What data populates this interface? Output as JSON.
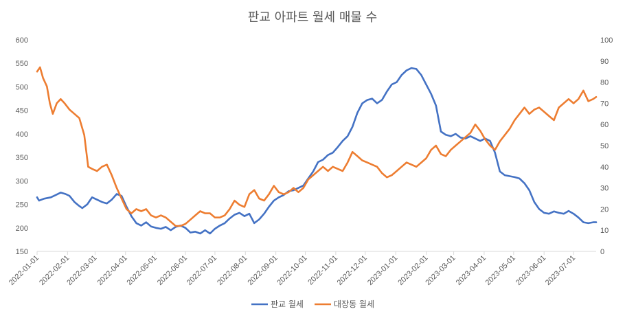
{
  "chart_data": {
    "type": "line",
    "title": "판교 아파트 월세 매물 수",
    "x_tick_labels": [
      "2022-01-01",
      "2022-02-01",
      "2022-03-01",
      "2022-04-01",
      "2022-05-01",
      "2022-06-01",
      "2022-07-01",
      "2022-08-01",
      "2022-09-01",
      "2022-10-01",
      "2022-11-01",
      "2022-12-01",
      "2023-01-01",
      "2023-02-01",
      "2023-03-01",
      "2023-04-01",
      "2023-05-01",
      "2023-06-01",
      "2023-07-01"
    ],
    "x_range": [
      "2022-01-01",
      "2023-07-24"
    ],
    "y_left": {
      "min": 150,
      "max": 600,
      "step": 50,
      "ticks": [
        "150",
        "200",
        "250",
        "300",
        "350",
        "400",
        "450",
        "500",
        "550",
        "600"
      ]
    },
    "y_right": {
      "min": 0,
      "max": 100,
      "step": 10,
      "ticks": [
        "0",
        "10",
        "20",
        "30",
        "40",
        "50",
        "60",
        "70",
        "80",
        "90",
        "100"
      ]
    },
    "grid": false,
    "legend_position": "bottom",
    "series": [
      {
        "name": "판교 월세",
        "axis": "left",
        "color": "#4472C4",
        "points": [
          [
            "2022-01-01",
            265
          ],
          [
            "2022-01-03",
            258
          ],
          [
            "2022-01-08",
            262
          ],
          [
            "2022-01-15",
            265
          ],
          [
            "2022-01-20",
            270
          ],
          [
            "2022-01-25",
            275
          ],
          [
            "2022-01-30",
            272
          ],
          [
            "2022-02-03",
            268
          ],
          [
            "2022-02-08",
            255
          ],
          [
            "2022-02-12",
            248
          ],
          [
            "2022-02-16",
            242
          ],
          [
            "2022-02-21",
            250
          ],
          [
            "2022-02-26",
            265
          ],
          [
            "2022-03-03",
            260
          ],
          [
            "2022-03-08",
            255
          ],
          [
            "2022-03-13",
            252
          ],
          [
            "2022-03-18",
            260
          ],
          [
            "2022-03-23",
            272
          ],
          [
            "2022-03-28",
            268
          ],
          [
            "2022-04-02",
            245
          ],
          [
            "2022-04-07",
            225
          ],
          [
            "2022-04-12",
            210
          ],
          [
            "2022-04-17",
            205
          ],
          [
            "2022-04-22",
            212
          ],
          [
            "2022-04-27",
            203
          ],
          [
            "2022-05-02",
            200
          ],
          [
            "2022-05-07",
            198
          ],
          [
            "2022-05-12",
            202
          ],
          [
            "2022-05-17",
            195
          ],
          [
            "2022-05-22",
            202
          ],
          [
            "2022-05-27",
            205
          ],
          [
            "2022-06-01",
            200
          ],
          [
            "2022-06-06",
            190
          ],
          [
            "2022-06-11",
            192
          ],
          [
            "2022-06-16",
            188
          ],
          [
            "2022-06-21",
            195
          ],
          [
            "2022-06-26",
            188
          ],
          [
            "2022-07-01",
            198
          ],
          [
            "2022-07-06",
            205
          ],
          [
            "2022-07-11",
            210
          ],
          [
            "2022-07-16",
            220
          ],
          [
            "2022-07-21",
            228
          ],
          [
            "2022-07-26",
            232
          ],
          [
            "2022-07-31",
            225
          ],
          [
            "2022-08-05",
            230
          ],
          [
            "2022-08-10",
            210
          ],
          [
            "2022-08-15",
            218
          ],
          [
            "2022-08-20",
            230
          ],
          [
            "2022-08-25",
            245
          ],
          [
            "2022-08-30",
            258
          ],
          [
            "2022-09-04",
            265
          ],
          [
            "2022-09-09",
            270
          ],
          [
            "2022-09-14",
            278
          ],
          [
            "2022-09-19",
            280
          ],
          [
            "2022-09-24",
            285
          ],
          [
            "2022-09-29",
            290
          ],
          [
            "2022-10-04",
            305
          ],
          [
            "2022-10-09",
            320
          ],
          [
            "2022-10-14",
            340
          ],
          [
            "2022-10-19",
            345
          ],
          [
            "2022-10-24",
            355
          ],
          [
            "2022-10-29",
            360
          ],
          [
            "2022-11-03",
            372
          ],
          [
            "2022-11-08",
            385
          ],
          [
            "2022-11-13",
            395
          ],
          [
            "2022-11-18",
            415
          ],
          [
            "2022-11-23",
            445
          ],
          [
            "2022-11-28",
            465
          ],
          [
            "2022-12-03",
            472
          ],
          [
            "2022-12-08",
            475
          ],
          [
            "2022-12-13",
            465
          ],
          [
            "2022-12-18",
            472
          ],
          [
            "2022-12-23",
            490
          ],
          [
            "2022-12-28",
            505
          ],
          [
            "2023-01-02",
            510
          ],
          [
            "2023-01-07",
            525
          ],
          [
            "2023-01-12",
            535
          ],
          [
            "2023-01-17",
            540
          ],
          [
            "2023-01-22",
            538
          ],
          [
            "2023-01-27",
            525
          ],
          [
            "2023-02-01",
            505
          ],
          [
            "2023-02-06",
            485
          ],
          [
            "2023-02-11",
            460
          ],
          [
            "2023-02-16",
            405
          ],
          [
            "2023-02-21",
            398
          ],
          [
            "2023-02-26",
            395
          ],
          [
            "2023-03-03",
            400
          ],
          [
            "2023-03-08",
            392
          ],
          [
            "2023-03-13",
            390
          ],
          [
            "2023-03-18",
            395
          ],
          [
            "2023-03-23",
            390
          ],
          [
            "2023-03-28",
            385
          ],
          [
            "2023-04-02",
            390
          ],
          [
            "2023-04-07",
            385
          ],
          [
            "2023-04-12",
            360
          ],
          [
            "2023-04-17",
            320
          ],
          [
            "2023-04-22",
            312
          ],
          [
            "2023-04-27",
            310
          ],
          [
            "2023-05-02",
            308
          ],
          [
            "2023-05-07",
            305
          ],
          [
            "2023-05-12",
            295
          ],
          [
            "2023-05-17",
            280
          ],
          [
            "2023-05-22",
            255
          ],
          [
            "2023-05-27",
            240
          ],
          [
            "2023-06-01",
            232
          ],
          [
            "2023-06-06",
            230
          ],
          [
            "2023-06-11",
            235
          ],
          [
            "2023-06-16",
            232
          ],
          [
            "2023-06-21",
            230
          ],
          [
            "2023-06-26",
            236
          ],
          [
            "2023-07-01",
            230
          ],
          [
            "2023-07-06",
            222
          ],
          [
            "2023-07-11",
            212
          ],
          [
            "2023-07-16",
            210
          ],
          [
            "2023-07-21",
            212
          ],
          [
            "2023-07-24",
            212
          ]
        ]
      },
      {
        "name": "대장동 월세",
        "axis": "right",
        "color": "#ED7D31",
        "points": [
          [
            "2022-01-01",
            85
          ],
          [
            "2022-01-04",
            87
          ],
          [
            "2022-01-07",
            82
          ],
          [
            "2022-01-11",
            78
          ],
          [
            "2022-01-14",
            70
          ],
          [
            "2022-01-17",
            65
          ],
          [
            "2022-01-21",
            70
          ],
          [
            "2022-01-25",
            72
          ],
          [
            "2022-01-29",
            70
          ],
          [
            "2022-02-03",
            67
          ],
          [
            "2022-02-08",
            65
          ],
          [
            "2022-02-13",
            63
          ],
          [
            "2022-02-18",
            55
          ],
          [
            "2022-02-22",
            40
          ],
          [
            "2022-02-26",
            39
          ],
          [
            "2022-03-03",
            38
          ],
          [
            "2022-03-08",
            40
          ],
          [
            "2022-03-13",
            41
          ],
          [
            "2022-03-18",
            36
          ],
          [
            "2022-03-23",
            30
          ],
          [
            "2022-03-28",
            25
          ],
          [
            "2022-04-02",
            20
          ],
          [
            "2022-04-07",
            18
          ],
          [
            "2022-04-12",
            20
          ],
          [
            "2022-04-17",
            19
          ],
          [
            "2022-04-22",
            20
          ],
          [
            "2022-04-27",
            17
          ],
          [
            "2022-05-02",
            16
          ],
          [
            "2022-05-07",
            17
          ],
          [
            "2022-05-12",
            16
          ],
          [
            "2022-05-17",
            14
          ],
          [
            "2022-05-22",
            12
          ],
          [
            "2022-05-27",
            12
          ],
          [
            "2022-06-01",
            13
          ],
          [
            "2022-06-06",
            15
          ],
          [
            "2022-06-11",
            17
          ],
          [
            "2022-06-16",
            19
          ],
          [
            "2022-06-21",
            18
          ],
          [
            "2022-06-26",
            18
          ],
          [
            "2022-07-01",
            16
          ],
          [
            "2022-07-06",
            16
          ],
          [
            "2022-07-11",
            17
          ],
          [
            "2022-07-16",
            20
          ],
          [
            "2022-07-21",
            24
          ],
          [
            "2022-07-26",
            22
          ],
          [
            "2022-07-31",
            21
          ],
          [
            "2022-08-05",
            27
          ],
          [
            "2022-08-10",
            29
          ],
          [
            "2022-08-15",
            25
          ],
          [
            "2022-08-20",
            24
          ],
          [
            "2022-08-25",
            27
          ],
          [
            "2022-08-30",
            31
          ],
          [
            "2022-09-04",
            28
          ],
          [
            "2022-09-09",
            27
          ],
          [
            "2022-09-14",
            28
          ],
          [
            "2022-09-19",
            30
          ],
          [
            "2022-09-24",
            28
          ],
          [
            "2022-09-29",
            30
          ],
          [
            "2022-10-04",
            34
          ],
          [
            "2022-10-09",
            36
          ],
          [
            "2022-10-14",
            38
          ],
          [
            "2022-10-19",
            40
          ],
          [
            "2022-10-24",
            38
          ],
          [
            "2022-10-29",
            40
          ],
          [
            "2022-11-03",
            39
          ],
          [
            "2022-11-08",
            38
          ],
          [
            "2022-11-13",
            42
          ],
          [
            "2022-11-18",
            47
          ],
          [
            "2022-11-23",
            45
          ],
          [
            "2022-11-28",
            43
          ],
          [
            "2022-12-03",
            42
          ],
          [
            "2022-12-08",
            41
          ],
          [
            "2022-12-13",
            40
          ],
          [
            "2022-12-18",
            37
          ],
          [
            "2022-12-23",
            35
          ],
          [
            "2022-12-28",
            36
          ],
          [
            "2023-01-02",
            38
          ],
          [
            "2023-01-07",
            40
          ],
          [
            "2023-01-12",
            42
          ],
          [
            "2023-01-17",
            41
          ],
          [
            "2023-01-22",
            40
          ],
          [
            "2023-01-27",
            42
          ],
          [
            "2023-02-01",
            44
          ],
          [
            "2023-02-06",
            48
          ],
          [
            "2023-02-11",
            50
          ],
          [
            "2023-02-16",
            46
          ],
          [
            "2023-02-21",
            45
          ],
          [
            "2023-02-26",
            48
          ],
          [
            "2023-03-03",
            50
          ],
          [
            "2023-03-08",
            52
          ],
          [
            "2023-03-13",
            54
          ],
          [
            "2023-03-18",
            56
          ],
          [
            "2023-03-23",
            60
          ],
          [
            "2023-03-28",
            57
          ],
          [
            "2023-04-02",
            53
          ],
          [
            "2023-04-07",
            50
          ],
          [
            "2023-04-12",
            48
          ],
          [
            "2023-04-17",
            52
          ],
          [
            "2023-04-22",
            55
          ],
          [
            "2023-04-27",
            58
          ],
          [
            "2023-05-02",
            62
          ],
          [
            "2023-05-07",
            65
          ],
          [
            "2023-05-12",
            68
          ],
          [
            "2023-05-17",
            65
          ],
          [
            "2023-05-22",
            67
          ],
          [
            "2023-05-27",
            68
          ],
          [
            "2023-06-01",
            66
          ],
          [
            "2023-06-06",
            64
          ],
          [
            "2023-06-11",
            62
          ],
          [
            "2023-06-16",
            68
          ],
          [
            "2023-06-21",
            70
          ],
          [
            "2023-06-26",
            72
          ],
          [
            "2023-07-01",
            70
          ],
          [
            "2023-07-06",
            72
          ],
          [
            "2023-07-11",
            76
          ],
          [
            "2023-07-16",
            71
          ],
          [
            "2023-07-21",
            72
          ],
          [
            "2023-07-24",
            73
          ]
        ]
      }
    ]
  }
}
